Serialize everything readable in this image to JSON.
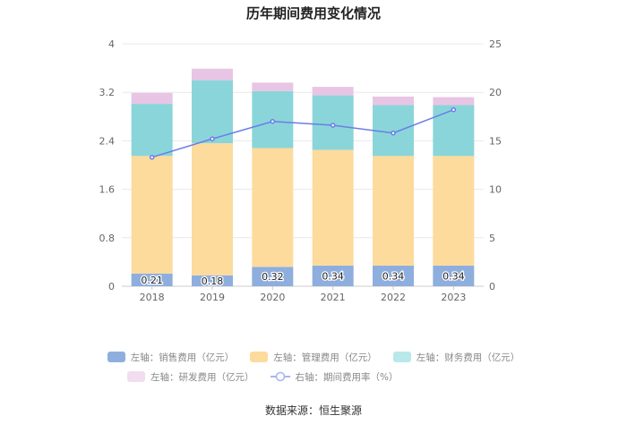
{
  "chart_data": {
    "type": "bar",
    "stacked": true,
    "title": "历年期间费用变化情况",
    "categories": [
      "2018",
      "2019",
      "2020",
      "2021",
      "2022",
      "2023"
    ],
    "left_axis": {
      "ylim": [
        0,
        4
      ],
      "ticks": [
        "0",
        "0.8",
        "1.6",
        "2.4",
        "3.2",
        "4"
      ]
    },
    "right_axis": {
      "ylim": [
        0,
        25
      ],
      "ticks": [
        "0",
        "5",
        "10",
        "15",
        "20",
        "25"
      ]
    },
    "series": [
      {
        "name": "左轴：销售费用（亿元）",
        "color": "#8eaede",
        "values": [
          0.21,
          0.18,
          0.32,
          0.34,
          0.34,
          0.34
        ],
        "labels": [
          "0.21",
          "0.18",
          "0.32",
          "0.34",
          "0.34",
          "0.34"
        ]
      },
      {
        "name": "左轴：管理费用（亿元）",
        "color": "#fddb9c",
        "values": [
          1.94,
          2.18,
          1.96,
          1.91,
          1.81,
          1.81
        ]
      },
      {
        "name": "左轴：财务费用（亿元）",
        "color": "#8ad5d9",
        "values": [
          0.86,
          1.04,
          0.94,
          0.9,
          0.84,
          0.84
        ]
      },
      {
        "name": "左轴：研发费用（亿元）",
        "color": "#e8c5e4",
        "values": [
          0.18,
          0.19,
          0.14,
          0.14,
          0.14,
          0.13
        ]
      },
      {
        "name": "右轴：期间费用率（%）",
        "type": "line",
        "axis": "right",
        "color": "#6a7de8",
        "values": [
          13.3,
          15.2,
          17.0,
          16.6,
          15.8,
          18.2
        ]
      }
    ]
  },
  "source": "数据来源：恒生聚源"
}
